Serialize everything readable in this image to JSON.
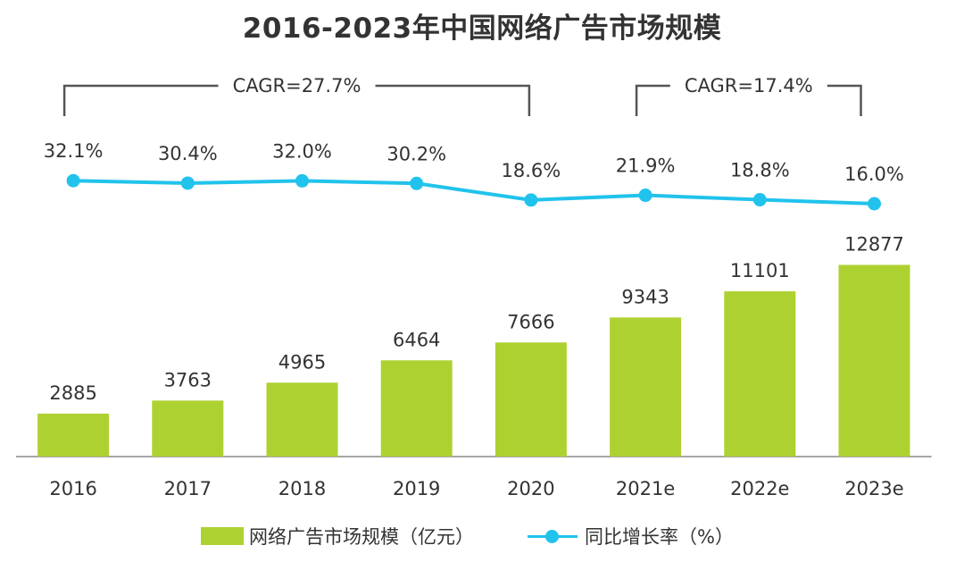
{
  "colors": {
    "bar": "#aed132",
    "line": "#21c3ec",
    "text": "#333333",
    "axis": "#888888"
  },
  "chart_data": {
    "type": "bar+line",
    "title": "2016-2023年中国网络广告市场规模",
    "categories": [
      "2016",
      "2017",
      "2018",
      "2019",
      "2020",
      "2021e",
      "2022e",
      "2023e"
    ],
    "series": [
      {
        "name": "网络广告市场规模（亿元）",
        "type": "bar",
        "values": [
          2885,
          3763,
          4965,
          6464,
          7666,
          9343,
          11101,
          12877
        ],
        "labels": [
          "2885",
          "3763",
          "4965",
          "6464",
          "7666",
          "9343",
          "11101",
          "12877"
        ]
      },
      {
        "name": "同比增长率（%）",
        "type": "line",
        "values": [
          32.1,
          30.4,
          32.0,
          30.2,
          18.6,
          21.9,
          18.8,
          16.0
        ],
        "labels": [
          "32.1%",
          "30.4%",
          "32.0%",
          "30.2%",
          "18.6%",
          "21.9%",
          "18.8%",
          "16.0%"
        ]
      }
    ],
    "annotations": [
      {
        "text": "CAGR=27.7%",
        "from": "2016",
        "to": "2020"
      },
      {
        "text": "CAGR=17.4%",
        "from": "2021e",
        "to": "2023e"
      }
    ],
    "grid": false,
    "legend_position": "bottom"
  }
}
